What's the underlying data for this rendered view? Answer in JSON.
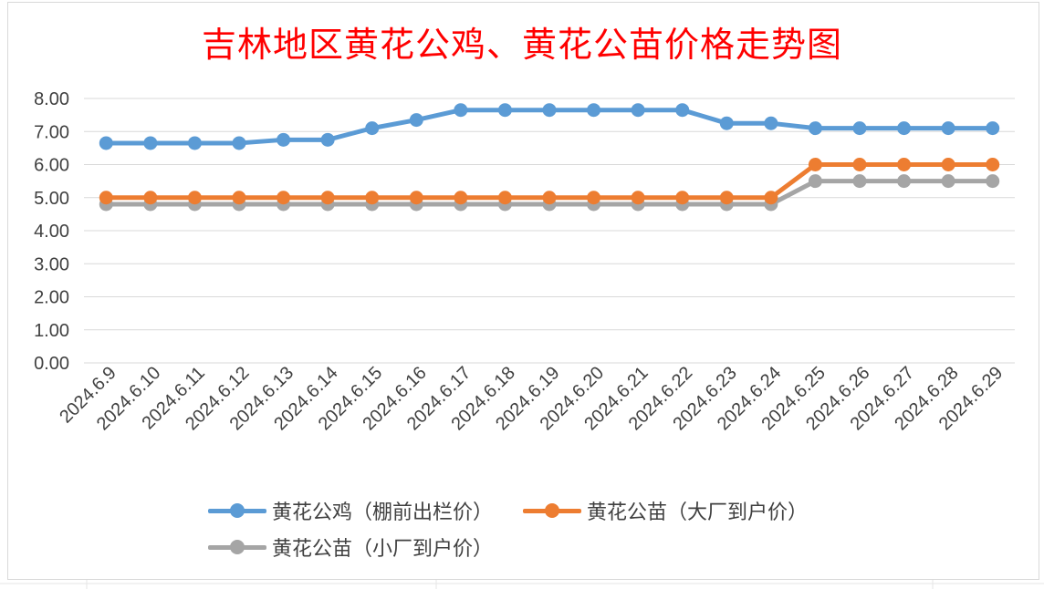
{
  "chart_data": {
    "type": "line",
    "title": "吉林地区黄花公鸡、黄花公苗价格走势图",
    "categories": [
      "2024.6.9",
      "2024.6.10",
      "2024.6.11",
      "2024.6.12",
      "2024.6.13",
      "2024.6.14",
      "2024.6.15",
      "2024.6.16",
      "2024.6.17",
      "2024.6.18",
      "2024.6.19",
      "2024.6.20",
      "2024.6.21",
      "2024.6.22",
      "2024.6.23",
      "2024.6.24",
      "2024.6.25",
      "2024.6.26",
      "2024.6.27",
      "2024.6.28",
      "2024.6.29"
    ],
    "ylim": [
      0,
      8
    ],
    "yticks": [
      "0.00",
      "1.00",
      "2.00",
      "3.00",
      "4.00",
      "5.00",
      "6.00",
      "7.00",
      "8.00"
    ],
    "grid": true,
    "legend_position": "bottom",
    "series": [
      {
        "name": "黄花公鸡（棚前出栏价）",
        "color": "#5b9bd5",
        "values": [
          6.65,
          6.65,
          6.65,
          6.65,
          6.75,
          6.75,
          7.1,
          7.35,
          7.65,
          7.65,
          7.65,
          7.65,
          7.65,
          7.65,
          7.25,
          7.25,
          7.1,
          7.1,
          7.1,
          7.1,
          7.1
        ]
      },
      {
        "name": "黄花公苗（大厂到户价）",
        "color": "#ed7d31",
        "values": [
          5.0,
          5.0,
          5.0,
          5.0,
          5.0,
          5.0,
          5.0,
          5.0,
          5.0,
          5.0,
          5.0,
          5.0,
          5.0,
          5.0,
          5.0,
          5.0,
          6.0,
          6.0,
          6.0,
          6.0,
          6.0
        ]
      },
      {
        "name": "黄花公苗（小厂到户价）",
        "color": "#a5a5a5",
        "values": [
          4.8,
          4.8,
          4.8,
          4.8,
          4.8,
          4.8,
          4.8,
          4.8,
          4.8,
          4.8,
          4.8,
          4.8,
          4.8,
          4.8,
          4.8,
          4.8,
          5.5,
          5.5,
          5.5,
          5.5,
          5.5
        ]
      }
    ]
  }
}
